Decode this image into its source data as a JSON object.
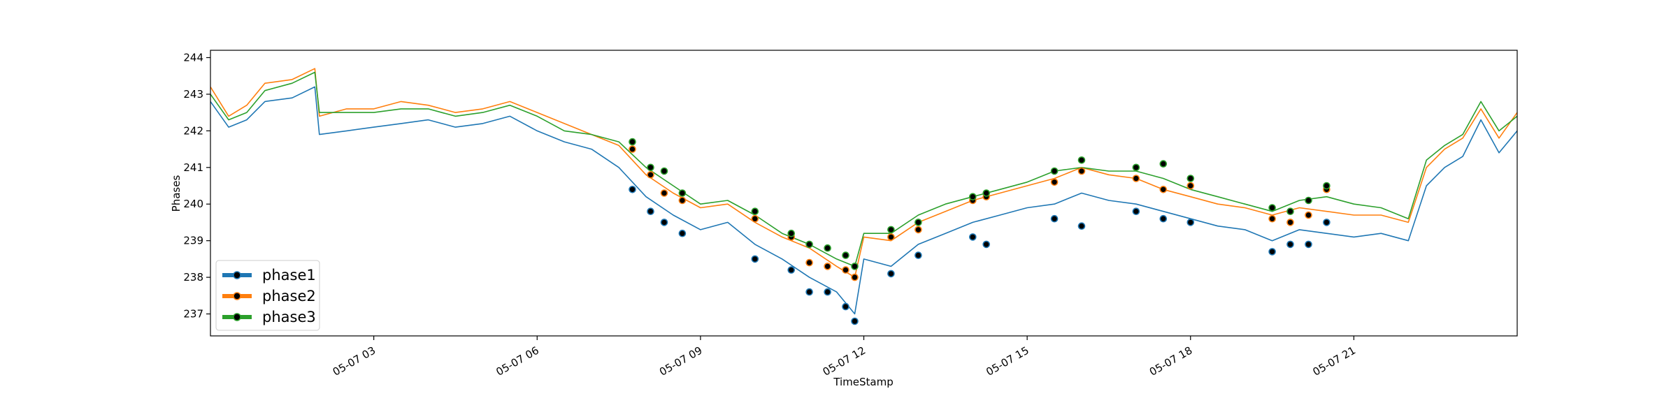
{
  "chart_data": {
    "type": "line",
    "title": "",
    "xlabel": "TimeStamp",
    "ylabel": "Phases",
    "xlim": [
      "2021-05-07 00:00",
      "2021-05-08 00:00"
    ],
    "ylim": [
      236.4,
      244.2
    ],
    "x_ticks": [
      "05-07 03",
      "05-07 06",
      "05-07 09",
      "05-07 12",
      "05-07 15",
      "05-07 18",
      "05-07 21"
    ],
    "x_tick_times": [
      "2021-05-07 03:00",
      "2021-05-07 06:00",
      "2021-05-07 09:00",
      "2021-05-07 12:00",
      "2021-05-07 15:00",
      "2021-05-07 18:00",
      "2021-05-07 21:00"
    ],
    "y_ticks": [
      237,
      238,
      239,
      240,
      241,
      242,
      243,
      244
    ],
    "grid": false,
    "legend_position": "lower-left",
    "series": [
      {
        "name": "phase1",
        "color": "#1f77b4",
        "x": [
          "2021-05-07 00:00",
          "2021-05-07 00:20",
          "2021-05-07 00:40",
          "2021-05-07 01:00",
          "2021-05-07 01:30",
          "2021-05-07 01:55",
          "2021-05-07 02:00",
          "2021-05-07 02:30",
          "2021-05-07 03:00",
          "2021-05-07 03:30",
          "2021-05-07 04:00",
          "2021-05-07 04:30",
          "2021-05-07 05:00",
          "2021-05-07 05:30",
          "2021-05-07 06:00",
          "2021-05-07 06:30",
          "2021-05-07 07:00",
          "2021-05-07 07:30",
          "2021-05-07 08:00",
          "2021-05-07 08:30",
          "2021-05-07 09:00",
          "2021-05-07 09:30",
          "2021-05-07 10:00",
          "2021-05-07 10:30",
          "2021-05-07 11:00",
          "2021-05-07 11:30",
          "2021-05-07 11:50",
          "2021-05-07 12:00",
          "2021-05-07 12:30",
          "2021-05-07 13:00",
          "2021-05-07 13:30",
          "2021-05-07 14:00",
          "2021-05-07 14:30",
          "2021-05-07 15:00",
          "2021-05-07 15:30",
          "2021-05-07 16:00",
          "2021-05-07 16:30",
          "2021-05-07 17:00",
          "2021-05-07 17:30",
          "2021-05-07 18:00",
          "2021-05-07 18:30",
          "2021-05-07 19:00",
          "2021-05-07 19:30",
          "2021-05-07 20:00",
          "2021-05-07 20:30",
          "2021-05-07 21:00",
          "2021-05-07 21:30",
          "2021-05-07 22:00",
          "2021-05-07 22:20",
          "2021-05-07 22:40",
          "2021-05-07 23:00",
          "2021-05-07 23:20",
          "2021-05-07 23:40",
          "2021-05-08 00:00"
        ],
        "values": [
          242.8,
          242.1,
          242.3,
          242.8,
          242.9,
          243.2,
          241.9,
          242.0,
          242.1,
          242.2,
          242.3,
          242.1,
          242.2,
          242.4,
          242.0,
          241.7,
          241.5,
          241.0,
          240.2,
          239.7,
          239.3,
          239.5,
          238.9,
          238.5,
          238.0,
          237.6,
          237.0,
          238.5,
          238.3,
          238.9,
          239.2,
          239.5,
          239.7,
          239.9,
          240.0,
          240.3,
          240.1,
          240.0,
          239.8,
          239.6,
          239.4,
          239.3,
          239.0,
          239.3,
          239.2,
          239.1,
          239.2,
          239.0,
          240.5,
          241.0,
          241.3,
          242.3,
          241.4,
          242.0
        ],
        "marked_x": [
          "2021-05-07 07:45",
          "2021-05-07 08:05",
          "2021-05-07 08:20",
          "2021-05-07 08:40",
          "2021-05-07 10:00",
          "2021-05-07 10:40",
          "2021-05-07 11:00",
          "2021-05-07 11:20",
          "2021-05-07 11:40",
          "2021-05-07 11:50",
          "2021-05-07 12:30",
          "2021-05-07 13:00",
          "2021-05-07 14:00",
          "2021-05-07 14:15",
          "2021-05-07 15:30",
          "2021-05-07 16:00",
          "2021-05-07 17:00",
          "2021-05-07 17:30",
          "2021-05-07 18:00",
          "2021-05-07 19:30",
          "2021-05-07 19:50",
          "2021-05-07 20:10",
          "2021-05-07 20:30"
        ],
        "marked_values": [
          240.4,
          239.8,
          239.5,
          239.2,
          238.5,
          238.2,
          237.6,
          237.6,
          237.2,
          236.8,
          238.1,
          238.6,
          239.1,
          238.9,
          239.6,
          239.4,
          239.8,
          239.6,
          239.5,
          238.7,
          238.9,
          238.9,
          239.5
        ]
      },
      {
        "name": "phase2",
        "color": "#ff7f0e",
        "x": [
          "2021-05-07 00:00",
          "2021-05-07 00:20",
          "2021-05-07 00:40",
          "2021-05-07 01:00",
          "2021-05-07 01:30",
          "2021-05-07 01:55",
          "2021-05-07 02:00",
          "2021-05-07 02:30",
          "2021-05-07 03:00",
          "2021-05-07 03:30",
          "2021-05-07 04:00",
          "2021-05-07 04:30",
          "2021-05-07 05:00",
          "2021-05-07 05:30",
          "2021-05-07 06:00",
          "2021-05-07 06:30",
          "2021-05-07 07:00",
          "2021-05-07 07:30",
          "2021-05-07 08:00",
          "2021-05-07 08:30",
          "2021-05-07 09:00",
          "2021-05-07 09:30",
          "2021-05-07 10:00",
          "2021-05-07 10:30",
          "2021-05-07 11:00",
          "2021-05-07 11:30",
          "2021-05-07 11:50",
          "2021-05-07 12:00",
          "2021-05-07 12:30",
          "2021-05-07 13:00",
          "2021-05-07 13:30",
          "2021-05-07 14:00",
          "2021-05-07 14:30",
          "2021-05-07 15:00",
          "2021-05-07 15:30",
          "2021-05-07 16:00",
          "2021-05-07 16:30",
          "2021-05-07 17:00",
          "2021-05-07 17:30",
          "2021-05-07 18:00",
          "2021-05-07 18:30",
          "2021-05-07 19:00",
          "2021-05-07 19:30",
          "2021-05-07 20:00",
          "2021-05-07 20:30",
          "2021-05-07 21:00",
          "2021-05-07 21:30",
          "2021-05-07 22:00",
          "2021-05-07 22:20",
          "2021-05-07 22:40",
          "2021-05-07 23:00",
          "2021-05-07 23:20",
          "2021-05-07 23:40",
          "2021-05-08 00:00"
        ],
        "values": [
          243.2,
          242.4,
          242.7,
          243.3,
          243.4,
          243.7,
          242.4,
          242.6,
          242.6,
          242.8,
          242.7,
          242.5,
          242.6,
          242.8,
          242.5,
          242.2,
          241.9,
          241.6,
          240.8,
          240.3,
          239.9,
          240.0,
          239.5,
          239.1,
          238.8,
          238.3,
          238.0,
          239.1,
          239.0,
          239.5,
          239.8,
          240.1,
          240.3,
          240.5,
          240.7,
          241.0,
          240.8,
          240.7,
          240.4,
          240.2,
          240.0,
          239.9,
          239.7,
          239.9,
          239.8,
          239.7,
          239.7,
          239.5,
          241.0,
          241.5,
          241.8,
          242.6,
          241.8,
          242.5
        ],
        "marked_x": [
          "2021-05-07 07:45",
          "2021-05-07 08:05",
          "2021-05-07 08:20",
          "2021-05-07 08:40",
          "2021-05-07 10:00",
          "2021-05-07 10:40",
          "2021-05-07 11:00",
          "2021-05-07 11:20",
          "2021-05-07 11:40",
          "2021-05-07 11:50",
          "2021-05-07 12:30",
          "2021-05-07 13:00",
          "2021-05-07 14:00",
          "2021-05-07 14:15",
          "2021-05-07 15:30",
          "2021-05-07 16:00",
          "2021-05-07 17:00",
          "2021-05-07 17:30",
          "2021-05-07 18:00",
          "2021-05-07 19:30",
          "2021-05-07 19:50",
          "2021-05-07 20:10",
          "2021-05-07 20:30"
        ],
        "marked_values": [
          241.5,
          240.8,
          240.3,
          240.1,
          239.6,
          239.1,
          238.4,
          238.3,
          238.2,
          238.0,
          239.1,
          239.3,
          240.1,
          240.2,
          240.6,
          240.9,
          240.7,
          240.4,
          240.5,
          239.6,
          239.5,
          239.7,
          240.4
        ]
      },
      {
        "name": "phase3",
        "color": "#2ca02c",
        "x": [
          "2021-05-07 00:00",
          "2021-05-07 00:20",
          "2021-05-07 00:40",
          "2021-05-07 01:00",
          "2021-05-07 01:30",
          "2021-05-07 01:55",
          "2021-05-07 02:00",
          "2021-05-07 02:30",
          "2021-05-07 03:00",
          "2021-05-07 03:30",
          "2021-05-07 04:00",
          "2021-05-07 04:30",
          "2021-05-07 05:00",
          "2021-05-07 05:30",
          "2021-05-07 06:00",
          "2021-05-07 06:30",
          "2021-05-07 07:00",
          "2021-05-07 07:30",
          "2021-05-07 08:00",
          "2021-05-07 08:30",
          "2021-05-07 09:00",
          "2021-05-07 09:30",
          "2021-05-07 10:00",
          "2021-05-07 10:30",
          "2021-05-07 11:00",
          "2021-05-07 11:30",
          "2021-05-07 11:50",
          "2021-05-07 12:00",
          "2021-05-07 12:30",
          "2021-05-07 13:00",
          "2021-05-07 13:30",
          "2021-05-07 14:00",
          "2021-05-07 14:30",
          "2021-05-07 15:00",
          "2021-05-07 15:30",
          "2021-05-07 16:00",
          "2021-05-07 16:30",
          "2021-05-07 17:00",
          "2021-05-07 17:30",
          "2021-05-07 18:00",
          "2021-05-07 18:30",
          "2021-05-07 19:00",
          "2021-05-07 19:30",
          "2021-05-07 20:00",
          "2021-05-07 20:30",
          "2021-05-07 21:00",
          "2021-05-07 21:30",
          "2021-05-07 22:00",
          "2021-05-07 22:20",
          "2021-05-07 22:40",
          "2021-05-07 23:00",
          "2021-05-07 23:20",
          "2021-05-07 23:40",
          "2021-05-08 00:00"
        ],
        "values": [
          243.0,
          242.3,
          242.5,
          243.1,
          243.3,
          243.6,
          242.5,
          242.5,
          242.5,
          242.6,
          242.6,
          242.4,
          242.5,
          242.7,
          242.4,
          242.0,
          241.9,
          241.7,
          241.0,
          240.5,
          240.0,
          240.1,
          239.7,
          239.2,
          238.9,
          238.5,
          238.3,
          239.2,
          239.2,
          239.7,
          240.0,
          240.2,
          240.4,
          240.6,
          240.9,
          241.0,
          240.9,
          240.9,
          240.7,
          240.4,
          240.2,
          240.0,
          239.8,
          240.1,
          240.2,
          240.0,
          239.9,
          239.6,
          241.2,
          241.6,
          241.9,
          242.8,
          242.0,
          242.4
        ],
        "marked_x": [
          "2021-05-07 07:45",
          "2021-05-07 08:05",
          "2021-05-07 08:20",
          "2021-05-07 08:40",
          "2021-05-07 10:00",
          "2021-05-07 10:40",
          "2021-05-07 11:00",
          "2021-05-07 11:20",
          "2021-05-07 11:40",
          "2021-05-07 11:50",
          "2021-05-07 12:30",
          "2021-05-07 13:00",
          "2021-05-07 14:00",
          "2021-05-07 14:15",
          "2021-05-07 15:30",
          "2021-05-07 16:00",
          "2021-05-07 17:00",
          "2021-05-07 17:30",
          "2021-05-07 18:00",
          "2021-05-07 19:30",
          "2021-05-07 19:50",
          "2021-05-07 20:10",
          "2021-05-07 20:30"
        ],
        "marked_values": [
          241.7,
          241.0,
          240.9,
          240.3,
          239.8,
          239.2,
          238.9,
          238.8,
          238.6,
          238.3,
          239.3,
          239.5,
          240.2,
          240.3,
          240.9,
          241.2,
          241.0,
          241.1,
          240.7,
          239.9,
          239.8,
          240.1,
          240.5
        ]
      }
    ]
  }
}
